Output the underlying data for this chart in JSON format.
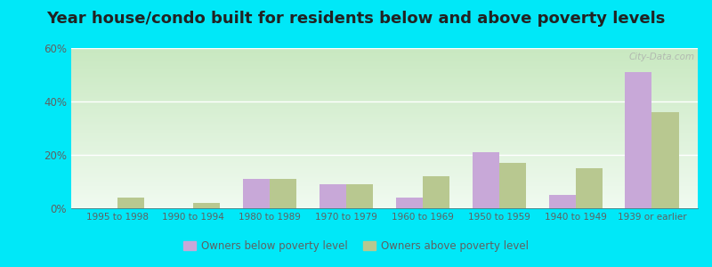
{
  "title": "Year house/condo built for residents below and above poverty levels",
  "categories": [
    "1995 to 1998",
    "1990 to 1994",
    "1980 to 1989",
    "1970 to 1979",
    "1960 to 1969",
    "1950 to 1959",
    "1940 to 1949",
    "1939 or earlier"
  ],
  "below_poverty": [
    0,
    0,
    11,
    9,
    4,
    21,
    5,
    51
  ],
  "above_poverty": [
    4,
    2,
    11,
    9,
    12,
    17,
    15,
    36
  ],
  "below_color": "#c8a8d8",
  "above_color": "#b8c890",
  "ylim": [
    0,
    60
  ],
  "yticks": [
    0,
    20,
    40,
    60
  ],
  "ytick_labels": [
    "0%",
    "20%",
    "40%",
    "60%"
  ],
  "legend_below": "Owners below poverty level",
  "legend_above": "Owners above poverty level",
  "bg_color_top": "#c8e8c0",
  "bg_color_bottom": "#f0faf0",
  "outer_bg": "#00e8f8",
  "title_fontsize": 13,
  "bar_width": 0.35,
  "tick_color": "#606060",
  "grid_color": "#ffffff",
  "watermark": "City-Data.com"
}
